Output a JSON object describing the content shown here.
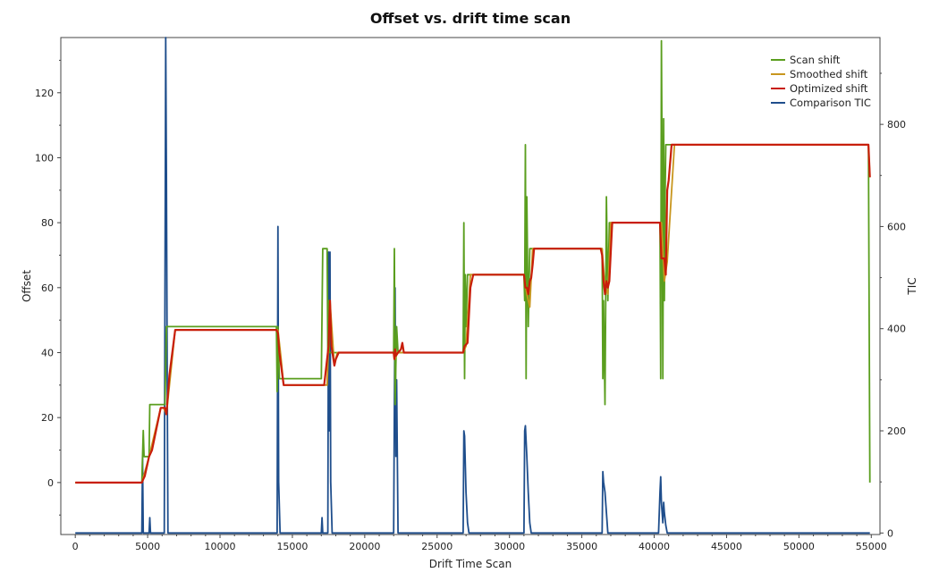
{
  "chart_data": {
    "type": "line",
    "title": "Offset vs. drift time scan",
    "xlabel": "Drift Time Scan",
    "ylabel": "Offset",
    "y2label": "TIC",
    "xlim": [
      -1000,
      55600
    ],
    "ylim": [
      -16,
      137
    ],
    "y2lim": [
      -3,
      970
    ],
    "x_ticks": [
      0,
      5000,
      10000,
      15000,
      20000,
      25000,
      30000,
      35000,
      40000,
      45000,
      50000,
      55000
    ],
    "y_ticks": [
      0,
      20,
      40,
      60,
      80,
      100,
      120
    ],
    "y2_ticks": [
      0,
      200,
      400,
      600,
      800
    ],
    "legend_position": "top-right",
    "series": [
      {
        "name": "Scan shift",
        "color": "#5a9e1e",
        "axis": "left",
        "x": [
          0,
          4600,
          4650,
          4700,
          4750,
          4800,
          5100,
          5150,
          5200,
          6000,
          6200,
          6300,
          6350,
          13900,
          13950,
          14000,
          14100,
          14200,
          17000,
          17100,
          17400,
          17450,
          17500,
          17550,
          17600,
          17700,
          22000,
          22050,
          22100,
          22200,
          22300,
          26800,
          26850,
          26900,
          26950,
          27000,
          27100,
          31000,
          31050,
          31100,
          31150,
          31200,
          31300,
          31400,
          31500,
          36400,
          36450,
          36500,
          36600,
          36700,
          36800,
          36900,
          37000,
          40400,
          40450,
          40500,
          40550,
          40600,
          40650,
          40700,
          40750,
          40800,
          40900,
          41000,
          54700,
          54800,
          54900
        ],
        "values": [
          0,
          0,
          8,
          16,
          8,
          8,
          8,
          24,
          24,
          24,
          24,
          48,
          48,
          48,
          28,
          48,
          32,
          32,
          32,
          72,
          72,
          40,
          56,
          40,
          40,
          40,
          40,
          72,
          24,
          48,
          40,
          40,
          80,
          32,
          64,
          48,
          64,
          64,
          56,
          104,
          32,
          88,
          48,
          72,
          72,
          72,
          32,
          56,
          24,
          88,
          56,
          80,
          80,
          80,
          32,
          136,
          96,
          32,
          112,
          56,
          88,
          104,
          104,
          104,
          104,
          104,
          0
        ]
      },
      {
        "name": "Smoothed shift",
        "color": "#c8961e",
        "axis": "left",
        "x": [
          0,
          4600,
          5100,
          5900,
          6100,
          6300,
          6900,
          14000,
          14200,
          14400,
          17400,
          17600,
          17900,
          18100,
          22000,
          22100,
          22200,
          26800,
          27000,
          27300,
          31000,
          31200,
          31400,
          31600,
          36400,
          36600,
          36800,
          37000,
          40500,
          40700,
          40900,
          41400,
          54800,
          54900
        ],
        "values": [
          0,
          0,
          8,
          23,
          23,
          21,
          47,
          47,
          39,
          30,
          30,
          56,
          36,
          40,
          40,
          38,
          40,
          40,
          42,
          64,
          64,
          58,
          54,
          72,
          72,
          60,
          58,
          80,
          80,
          62,
          68,
          104,
          104,
          94
        ]
      },
      {
        "name": "Optimized shift",
        "color": "#c81e0a",
        "axis": "left",
        "x": [
          0,
          4600,
          4700,
          4800,
          5100,
          5300,
          5900,
          6200,
          6300,
          6500,
          6900,
          13900,
          14000,
          14100,
          14400,
          17200,
          17500,
          17600,
          17700,
          17900,
          18000,
          18200,
          22000,
          22050,
          22100,
          22150,
          22300,
          22500,
          22600,
          22700,
          26700,
          26800,
          26900,
          27100,
          27300,
          27500,
          31000,
          31100,
          31200,
          31300,
          31400,
          31500,
          31600,
          31700,
          32000,
          36300,
          36400,
          36500,
          36600,
          36700,
          36800,
          36900,
          37100,
          40300,
          40400,
          40500,
          40700,
          40800,
          40900,
          41000,
          41200,
          54700,
          54800,
          54900
        ],
        "values": [
          0,
          0,
          1,
          2,
          8,
          10,
          23,
          23,
          21,
          33,
          47,
          47,
          46,
          40,
          30,
          30,
          42,
          56,
          42,
          36,
          38,
          40,
          40,
          38,
          41,
          39,
          40,
          41,
          43,
          40,
          40,
          40,
          42,
          43,
          60,
          64,
          64,
          60,
          60,
          58,
          62,
          63,
          67,
          72,
          72,
          72,
          70,
          62,
          58,
          62,
          60,
          62,
          80,
          80,
          80,
          69,
          69,
          64,
          90,
          93,
          104,
          104,
          104,
          94
        ]
      },
      {
        "name": "Comparison TIC",
        "color": "#1f4e8c",
        "axis": "right",
        "x": [
          0,
          4600,
          4650,
          4700,
          5100,
          5150,
          5200,
          6150,
          6250,
          6300,
          6350,
          6400,
          13950,
          14000,
          14050,
          14150,
          17000,
          17050,
          17100,
          17450,
          17500,
          17550,
          17600,
          17650,
          17750,
          22000,
          22050,
          22100,
          22150,
          22200,
          22300,
          26800,
          26850,
          26900,
          27000,
          27100,
          27200,
          31000,
          31050,
          31100,
          31200,
          31300,
          31400,
          31500,
          36400,
          36450,
          36500,
          36600,
          36700,
          36800,
          40300,
          40400,
          40450,
          40500,
          40550,
          40600,
          40650,
          40700,
          40800,
          40900,
          54900
        ],
        "values": [
          0,
          0,
          150,
          0,
          0,
          30,
          0,
          0,
          970,
          700,
          300,
          0,
          0,
          600,
          100,
          0,
          0,
          30,
          0,
          0,
          550,
          200,
          550,
          100,
          0,
          0,
          250,
          480,
          150,
          300,
          0,
          0,
          200,
          190,
          80,
          20,
          0,
          0,
          200,
          210,
          150,
          80,
          20,
          0,
          0,
          120,
          100,
          80,
          40,
          0,
          0,
          80,
          110,
          60,
          40,
          20,
          60,
          40,
          15,
          0,
          0
        ]
      }
    ]
  }
}
